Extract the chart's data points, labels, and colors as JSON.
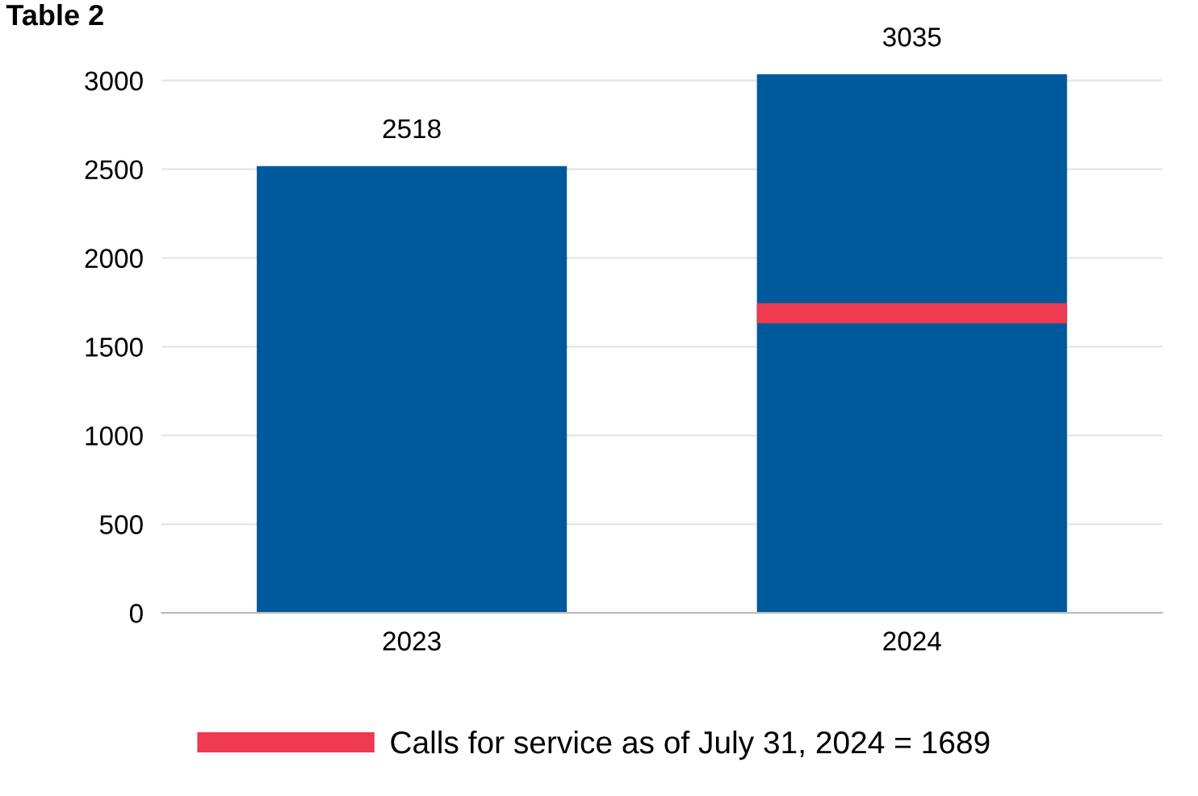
{
  "chart_data": {
    "type": "bar",
    "title": "Table 2",
    "categories": [
      "2023",
      "2024"
    ],
    "series": [
      {
        "color": "#00599a",
        "values": [
          2518,
          3035
        ],
        "value_labels": [
          "2518",
          "3035"
        ]
      }
    ],
    "ref_lines": [
      {
        "axis": "y",
        "value": 1689,
        "label": "Calls for service as of July 31, 2024 = 1689",
        "color": "#ee3a50"
      }
    ],
    "ylim": [
      0,
      3050
    ],
    "yticks": [
      0,
      500,
      1000,
      1500,
      2000,
      2500,
      3000
    ],
    "grid": "y",
    "legend": "bottom"
  }
}
